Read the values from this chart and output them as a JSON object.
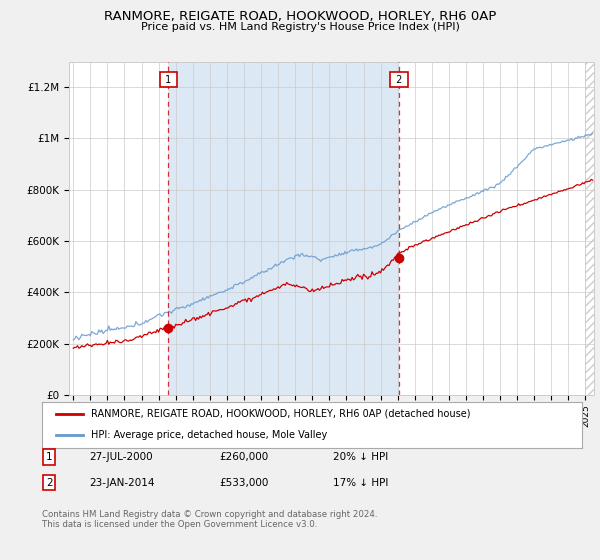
{
  "title": "RANMORE, REIGATE ROAD, HOOKWOOD, HORLEY, RH6 0AP",
  "subtitle": "Price paid vs. HM Land Registry's House Price Index (HPI)",
  "ylabel_ticks": [
    "£0",
    "£200K",
    "£400K",
    "£600K",
    "£800K",
    "£1M",
    "£1.2M"
  ],
  "ytick_values": [
    0,
    200000,
    400000,
    600000,
    800000,
    1000000,
    1200000
  ],
  "ylim": [
    0,
    1300000
  ],
  "xlim_start": 1994.75,
  "xlim_end": 2025.5,
  "legend_line1": "RANMORE, REIGATE ROAD, HOOKWOOD, HORLEY, RH6 0AP (detached house)",
  "legend_line2": "HPI: Average price, detached house, Mole Valley",
  "line_color_red": "#cc0000",
  "line_color_blue": "#6699cc",
  "fill_color_blue": "#dce9f5",
  "vline_color": "#cc0000",
  "marker1_date": 2000.57,
  "marker1_label": "1",
  "marker1_price": 260000,
  "marker2_date": 2014.07,
  "marker2_label": "2",
  "marker2_price": 533000,
  "footer": "Contains HM Land Registry data © Crown copyright and database right 2024.\nThis data is licensed under the Open Government Licence v3.0.",
  "bg_color": "#f0f0f0",
  "plot_bg_color": "#ffffff",
  "grid_color": "#cccccc",
  "hatch_color": "#cccccc"
}
